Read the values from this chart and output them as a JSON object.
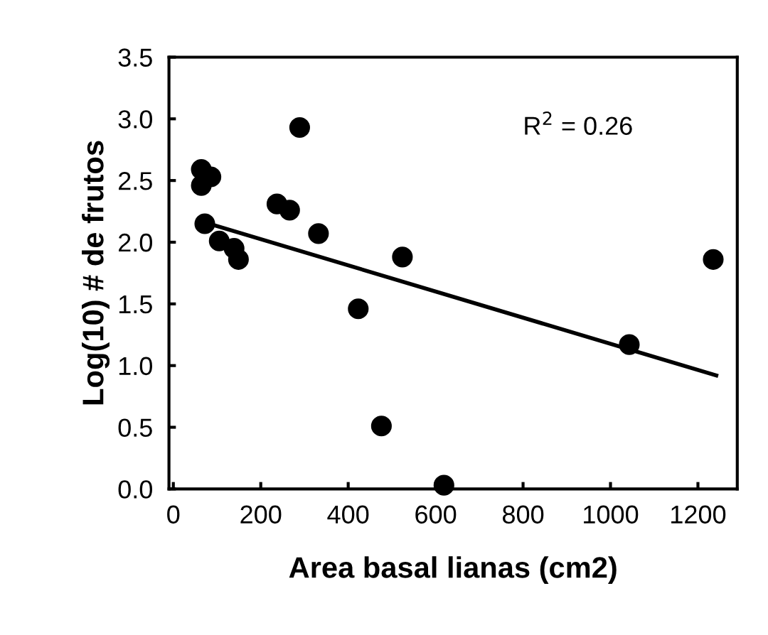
{
  "chart_data": {
    "type": "scatter",
    "xlabel": "Area basal lianas (cm2)",
    "ylabel": "Log(10) # de frutos",
    "annotations": [
      "R$^{2}$ = 0.26"
    ],
    "series": [
      {
        "color": "#000000",
        "marker": "circle",
        "x": [
          64,
          64,
          86,
          72,
          105,
          139,
          149,
          237,
          266,
          289,
          332,
          423,
          524,
          476,
          619,
          1043,
          1235
        ],
        "values": [
          2.59,
          2.46,
          2.53,
          2.15,
          2.01,
          1.95,
          1.86,
          2.31,
          2.26,
          2.93,
          2.07,
          1.46,
          1.88,
          0.51,
          0.03,
          1.17,
          1.86
        ]
      },
      {
        "type": "line",
        "color": "#000000",
        "marker": "none",
        "line_style": "solid",
        "x": [
          72,
          1242
        ],
        "values": [
          2.16,
          0.92
        ]
      }
    ],
    "xlim": [
      -10,
      1290
    ],
    "ylim": [
      0,
      3.5
    ],
    "xticks": [
      0,
      200,
      400,
      600,
      800,
      1000,
      1200
    ],
    "yticks": [
      {
        "value": 0,
        "label": "0.0"
      },
      {
        "value": 0.5,
        "label": "0.5"
      },
      {
        "value": 1,
        "label": "1.0"
      },
      {
        "value": 1.5,
        "label": "1.5"
      },
      {
        "value": 2,
        "label": "2.0"
      },
      {
        "value": 2.5,
        "label": "2.5"
      },
      {
        "value": 3,
        "label": "3.0"
      },
      {
        "value": 3.5,
        "label": "3.5"
      }
    ],
    "grid": false,
    "legend": false
  }
}
